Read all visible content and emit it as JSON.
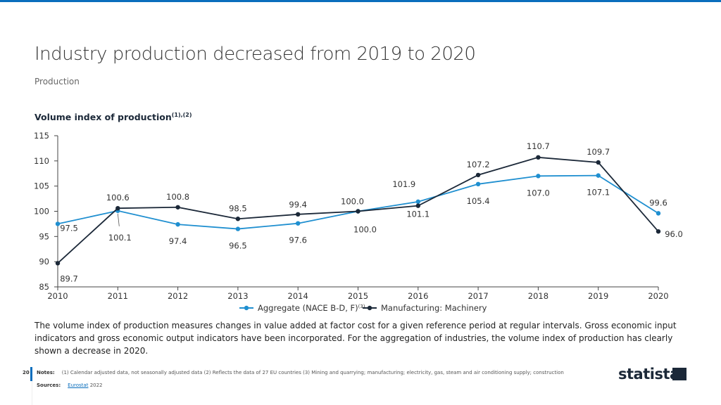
{
  "header": {
    "title": "Industry production decreased from 2019 to 2020",
    "subtitle": "Production"
  },
  "chart_data": {
    "type": "line",
    "title": "Volume index of production",
    "title_superscript": "(1),(2)",
    "x": [
      "2010",
      "2011",
      "2012",
      "2013",
      "2014",
      "2015",
      "2016",
      "2017",
      "2018",
      "2019",
      "2020"
    ],
    "yticks": [
      "85",
      "90",
      "95",
      "100",
      "105",
      "110",
      "115"
    ],
    "ylim": [
      85,
      115
    ],
    "grid": false,
    "legend_placement": "bottom",
    "series": [
      {
        "name": "Aggregate (NACE B-D, F)",
        "name_superscript": "(3)",
        "color": "#1f8fd0",
        "values": [
          97.5,
          100.1,
          97.4,
          96.5,
          97.6,
          100.0,
          101.9,
          105.4,
          107.0,
          107.1,
          99.6
        ]
      },
      {
        "name": "Manufacturing: Machinery",
        "color": "#1b2838",
        "values": [
          89.7,
          100.6,
          100.8,
          98.5,
          99.4,
          100.0,
          101.1,
          107.2,
          110.7,
          109.7,
          96.0
        ]
      }
    ]
  },
  "description": "The volume index of production measures changes in value added at factor cost for a given reference period at regular intervals. Gross economic input indicators and gross economic output indicators have been incorporated. For the aggregation of industries, the volume index of production has clearly shown a decrease in 2020.",
  "footer": {
    "page": "20",
    "notes_label": "Notes:",
    "notes": "(1) Calendar adjusted data, not seasonally adjusted data (2) Reflects the data of 27 EU countries (3) Mining and quarrying; manufacturing; electricity, gas, steam and air conditioning supply; construction",
    "sources_label": "Sources:",
    "source_link": "Eurostat",
    "source_year": "2022",
    "logo": "statista"
  }
}
